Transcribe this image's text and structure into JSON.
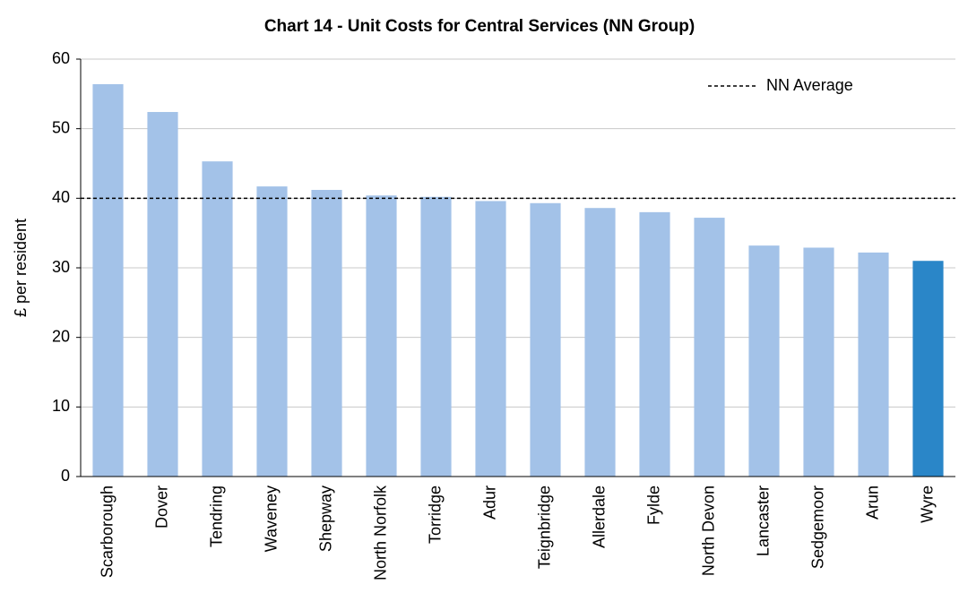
{
  "chart_data": {
    "type": "bar",
    "title": "Chart 14 - Unit Costs for Central Services (NN Group)",
    "ylabel": "£ per resident",
    "categories": [
      "Scarborough",
      "Dover",
      "Tendring",
      "Waveney",
      "Shepway",
      "North Norfolk",
      "Torridge",
      "Adur",
      "Teignbridge",
      "Allerdale",
      "Fylde",
      "North Devon",
      "Lancaster",
      "Sedgemoor",
      "Arun",
      "Wyre"
    ],
    "values": [
      56.4,
      52.4,
      45.3,
      41.7,
      41.2,
      40.4,
      40.2,
      39.6,
      39.3,
      38.6,
      38.0,
      37.2,
      33.2,
      32.9,
      32.2,
      31.0
    ],
    "colors": [
      "#a3c2e8",
      "#a3c2e8",
      "#a3c2e8",
      "#a3c2e8",
      "#a3c2e8",
      "#a3c2e8",
      "#a3c2e8",
      "#a3c2e8",
      "#a3c2e8",
      "#a3c2e8",
      "#a3c2e8",
      "#a3c2e8",
      "#a3c2e8",
      "#a3c2e8",
      "#a3c2e8",
      "#2a86c8"
    ],
    "reference_line": {
      "value": 40,
      "label": "NN Average",
      "color": "#000000"
    },
    "legend": "top-right",
    "ylim": [
      0,
      60
    ],
    "yticks": [
      0,
      10,
      20,
      30,
      40,
      50,
      60
    ],
    "grid": true
  }
}
